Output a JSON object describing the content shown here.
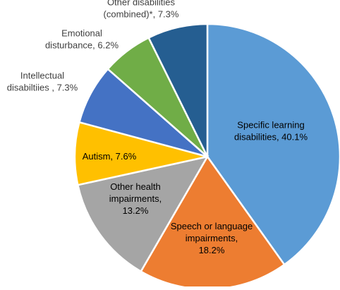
{
  "chart_data": {
    "type": "pie",
    "title": "",
    "start": "12 o'clock",
    "direction": "clockwise",
    "slices": [
      {
        "label_lines": [
          "Specific learning",
          "disabilities, 40.1%"
        ],
        "value": 40.1,
        "color": "#5B9BD5"
      },
      {
        "label_lines": [
          "Speech or language",
          "impairments,",
          "18.2%"
        ],
        "value": 18.2,
        "color": "#ED7D31"
      },
      {
        "label_lines": [
          "Other health",
          "impairments,",
          "13.2%"
        ],
        "value": 13.2,
        "color": "#A5A5A5"
      },
      {
        "label_lines": [
          "Autism, 7.6%"
        ],
        "value": 7.6,
        "color": "#FFC000"
      },
      {
        "label_lines": [
          "Intellectual",
          "disabiltiies , 7.3%"
        ],
        "value": 7.3,
        "color": "#4472C4"
      },
      {
        "label_lines": [
          "Emotional",
          "disturbance, 6.2%"
        ],
        "value": 6.2,
        "color": "#70AD47"
      },
      {
        "label_lines": [
          "Other disabilities",
          "(combined)*, 7.3%"
        ],
        "value": 7.3,
        "color": "#255E91"
      }
    ]
  }
}
